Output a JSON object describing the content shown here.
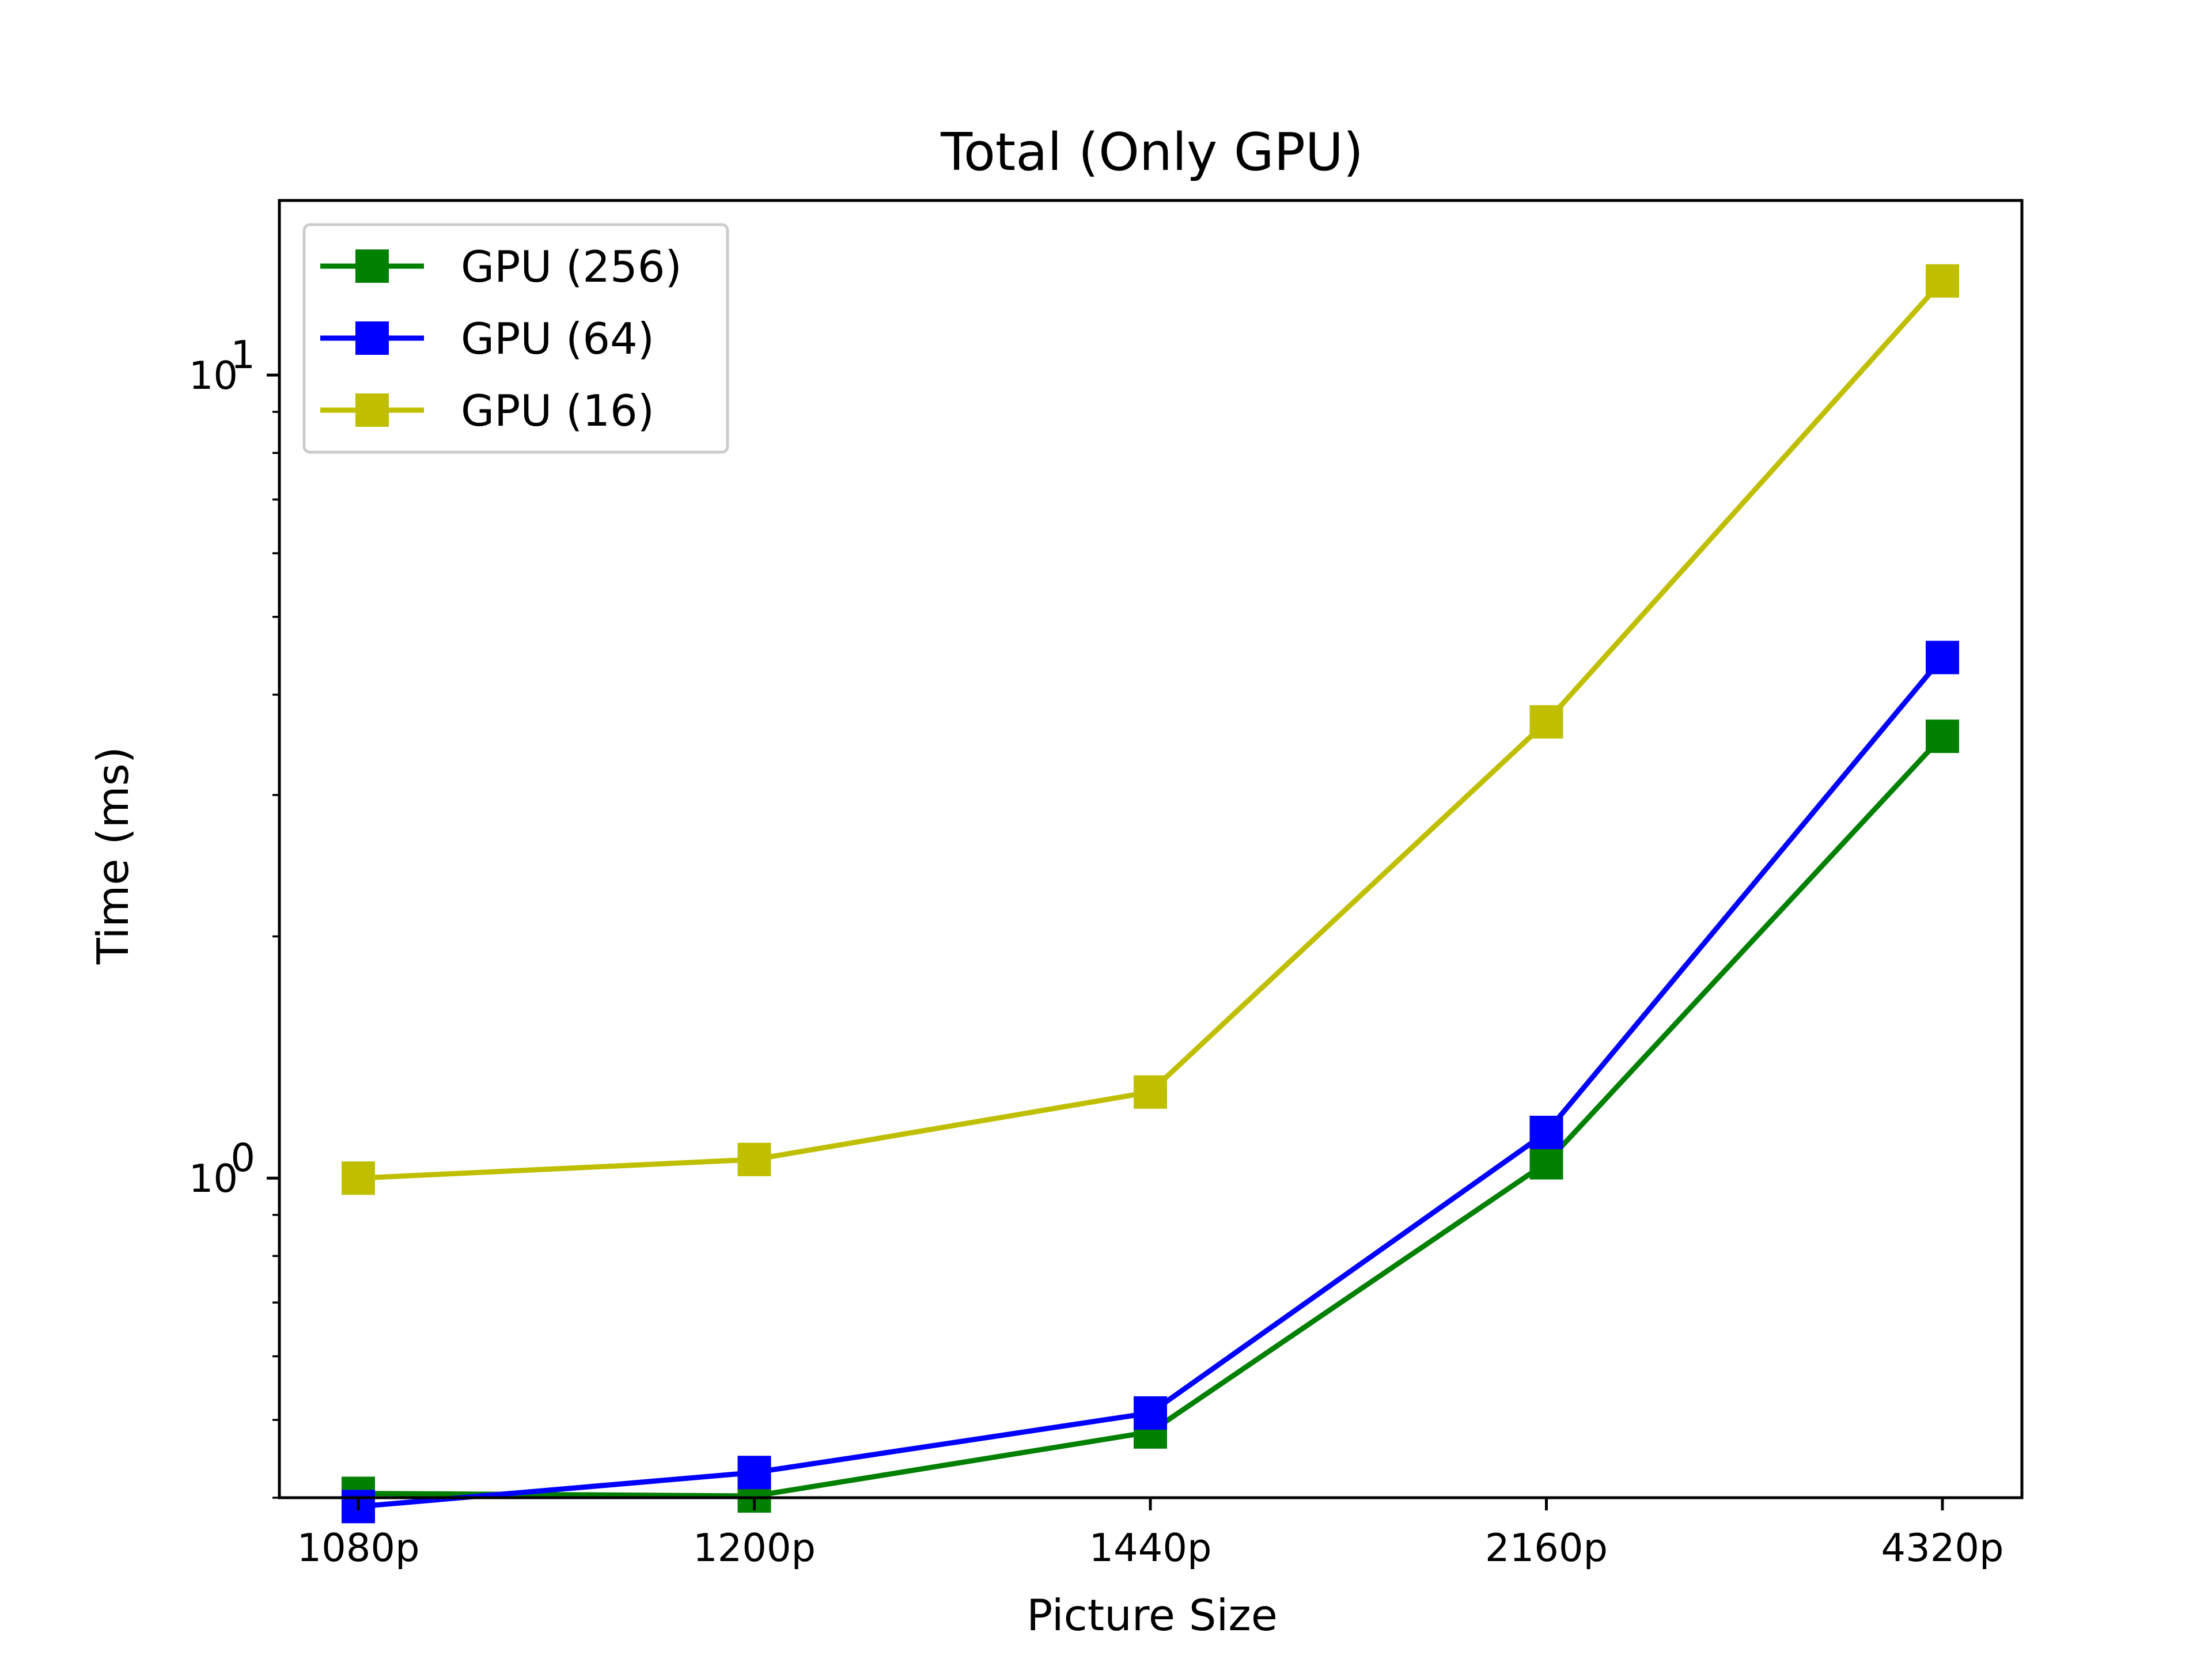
{
  "chart_data": {
    "type": "line",
    "title": "Total (Only GPU)",
    "xlabel": "Picture Size",
    "ylabel": "Time (ms)",
    "categories": [
      "1080p",
      "1200p",
      "1440p",
      "2160p",
      "4320p"
    ],
    "yscale": "log",
    "ylim": [
      0.4,
      16.5
    ],
    "yticks": [
      {
        "value": 1,
        "base": "10",
        "exp": "0"
      },
      {
        "value": 10,
        "base": "10",
        "exp": "1"
      }
    ],
    "grid": false,
    "legend_position": "top-left",
    "series": [
      {
        "name": "GPU (256)",
        "color": "#008000",
        "marker": "square",
        "values": [
          0.405,
          0.402,
          0.483,
          1.045,
          3.55
        ]
      },
      {
        "name": "GPU (64)",
        "color": "#0000ff",
        "marker": "square",
        "values": [
          0.39,
          0.43,
          0.51,
          1.14,
          4.45
        ]
      },
      {
        "name": "GPU (16)",
        "color": "#bfbf00",
        "marker": "square",
        "values": [
          1.0,
          1.055,
          1.28,
          3.7,
          13.1
        ]
      }
    ]
  }
}
